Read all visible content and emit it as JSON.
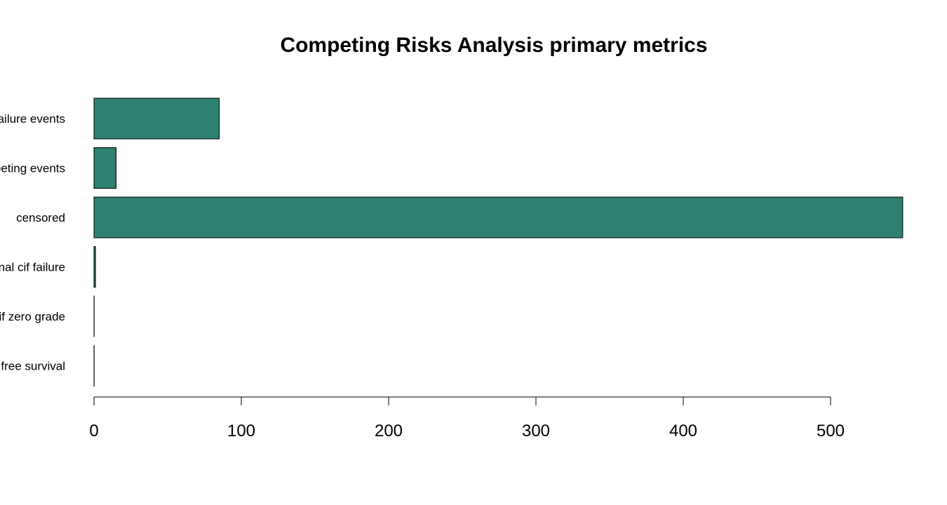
{
  "chart_data": {
    "type": "bar",
    "orientation": "horizontal",
    "title": "Competing Risks Analysis primary metrics",
    "xlabel": "",
    "ylabel": "",
    "categories": [
      "failure events",
      "competing events",
      "censored",
      "final cif failure",
      "cif zero grade",
      "event free survival"
    ],
    "values": [
      85,
      15,
      549,
      1,
      0.1,
      0.1
    ],
    "xlim": [
      0,
      549
    ],
    "xticks": [
      0,
      100,
      200,
      300,
      400,
      500
    ],
    "grid": false,
    "bar_color": "#2E8070"
  }
}
